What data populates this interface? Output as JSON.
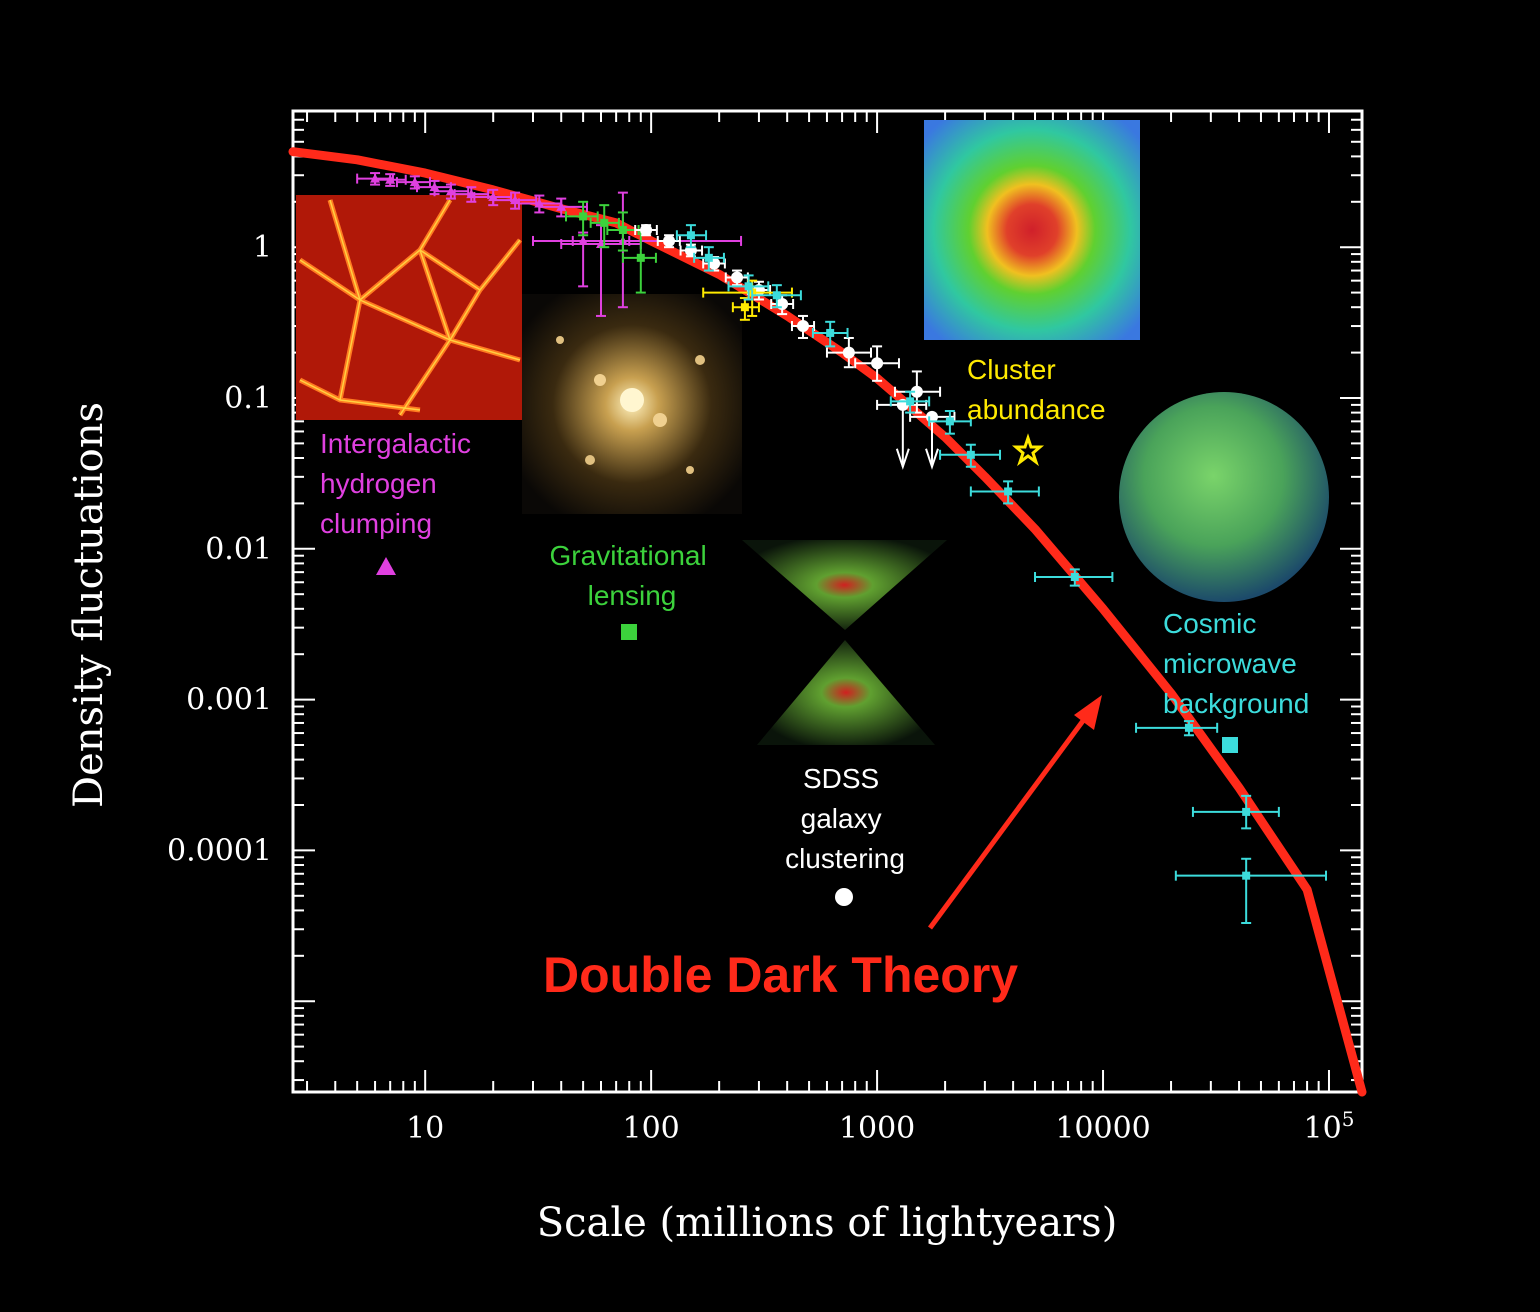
{
  "chart_data": {
    "type": "scatter",
    "xlabel": "Scale (millions of lightyears)",
    "ylabel": "Density fluctuations",
    "xscale": "log",
    "yscale": "log",
    "xlim": [
      2.6,
      140000
    ],
    "ylim": [
      2.5e-06,
      8.0
    ],
    "x_ticks": [
      {
        "value": 10,
        "label": "10"
      },
      {
        "value": 100,
        "label": "100"
      },
      {
        "value": 1000,
        "label": "1000"
      },
      {
        "value": 10000,
        "label": "10000"
      },
      {
        "value": 100000,
        "label": "10",
        "sup": "5"
      }
    ],
    "y_ticks": [
      {
        "value": 1,
        "label": "1"
      },
      {
        "value": 0.1,
        "label": "0.1"
      },
      {
        "value": 0.01,
        "label": "0.01"
      },
      {
        "value": 0.001,
        "label": "0.001"
      },
      {
        "value": 0.0001,
        "label": "0.0001"
      }
    ],
    "theory_curve": {
      "name": "Double Dark Theory",
      "color": "#ff2a1a",
      "x": [
        2.6,
        5,
        10,
        20,
        40,
        70,
        100,
        200,
        400,
        700,
        1000,
        1500,
        2000,
        3000,
        5000,
        10000,
        20000,
        40000,
        80000,
        140000
      ],
      "y": [
        4.3,
        3.8,
        3.1,
        2.4,
        1.8,
        1.45,
        1.1,
        0.66,
        0.35,
        0.2,
        0.135,
        0.08,
        0.055,
        0.03,
        0.0135,
        0.004,
        0.0011,
        0.00026,
        5.5e-05,
        2.5e-06
      ]
    },
    "series": [
      {
        "name": "Intergalactic hydrogen clumping",
        "color": "#e040e0",
        "marker": "triangle",
        "points": [
          {
            "x": 6,
            "y": 2.85,
            "xerr": [
              5,
              7.2
            ],
            "yerr": [
              2.6,
              3.1
            ]
          },
          {
            "x": 7,
            "y": 2.8,
            "xerr": [
              6,
              8.2
            ],
            "yerr": [
              2.55,
              3.05
            ]
          },
          {
            "x": 9,
            "y": 2.7,
            "xerr": [
              7.5,
              10.5
            ],
            "yerr": [
              2.45,
              2.95
            ]
          },
          {
            "x": 11,
            "y": 2.5,
            "xerr": [
              9.2,
              13
            ],
            "yerr": [
              2.25,
              2.75
            ]
          },
          {
            "x": 13,
            "y": 2.35,
            "xerr": [
              11,
              15.5
            ],
            "yerr": [
              2.1,
              2.6
            ]
          },
          {
            "x": 16,
            "y": 2.25,
            "xerr": [
              13.5,
              19
            ],
            "yerr": [
              2.0,
              2.5
            ]
          },
          {
            "x": 20,
            "y": 2.15,
            "xerr": [
              16.5,
              24
            ],
            "yerr": [
              1.9,
              2.4
            ]
          },
          {
            "x": 25,
            "y": 2.05,
            "xerr": [
              20,
              31
            ],
            "yerr": [
              1.8,
              2.3
            ]
          },
          {
            "x": 32,
            "y": 1.95,
            "xerr": [
              26,
              40
            ],
            "yerr": [
              1.7,
              2.2
            ]
          },
          {
            "x": 40,
            "y": 1.85,
            "xerr": [
              32,
              52
            ],
            "yerr": [
              1.6,
              2.1
            ]
          },
          {
            "x": 50,
            "y": 1.1,
            "xerr": [
              30,
              80
            ],
            "yerr": [
              0.55,
              1.25
            ]
          },
          {
            "x": 60,
            "y": 1.05,
            "xerr": [
              40,
              90
            ],
            "yerr": [
              0.35,
              1.4
            ]
          },
          {
            "x": 75,
            "y": 1.1,
            "xerr": [
              45,
              250
            ],
            "yerr": [
              0.4,
              2.3
            ]
          }
        ]
      },
      {
        "name": "Gravitational lensing",
        "color": "#3cd23c",
        "marker": "square",
        "points": [
          {
            "x": 50,
            "y": 1.6,
            "xerr": [
              42,
              58
            ],
            "yerr": [
              1.2,
              2.0
            ]
          },
          {
            "x": 62,
            "y": 1.45,
            "xerr": [
              54,
              72
            ],
            "yerr": [
              1.0,
              1.9
            ]
          },
          {
            "x": 75,
            "y": 1.3,
            "xerr": [
              64,
              88
            ],
            "yerr": [
              0.95,
              1.7
            ]
          },
          {
            "x": 90,
            "y": 0.85,
            "xerr": [
              75,
              105
            ],
            "yerr": [
              0.5,
              1.3
            ]
          }
        ]
      },
      {
        "name": "SDSS galaxy clustering",
        "color": "#ffffff",
        "marker": "circle",
        "points": [
          {
            "x": 95,
            "y": 1.3,
            "xerr": [
              85,
              106
            ],
            "yerr": [
              1.2,
              1.4
            ]
          },
          {
            "x": 120,
            "y": 1.1,
            "xerr": [
              107,
              134
            ],
            "yerr": [
              1.0,
              1.2
            ]
          },
          {
            "x": 150,
            "y": 0.95,
            "xerr": [
              135,
              168
            ],
            "yerr": [
              0.87,
              1.04
            ]
          },
          {
            "x": 190,
            "y": 0.78,
            "xerr": [
              170,
              212
            ],
            "yerr": [
              0.7,
              0.86
            ]
          },
          {
            "x": 240,
            "y": 0.63,
            "xerr": [
              214,
              268
            ],
            "yerr": [
              0.56,
              0.7
            ]
          },
          {
            "x": 300,
            "y": 0.52,
            "xerr": [
              268,
              336
            ],
            "yerr": [
              0.45,
              0.59
            ]
          },
          {
            "x": 380,
            "y": 0.42,
            "xerr": [
              340,
              425
            ],
            "yerr": [
              0.36,
              0.48
            ]
          },
          {
            "x": 470,
            "y": 0.3,
            "xerr": [
              420,
              526
            ],
            "yerr": [
              0.25,
              0.35
            ]
          },
          {
            "x": 750,
            "y": 0.2,
            "xerr": [
              600,
              940
            ],
            "yerr": [
              0.16,
              0.25
            ]
          },
          {
            "x": 1000,
            "y": 0.17,
            "xerr": [
              800,
              1250
            ],
            "yerr": [
              0.13,
              0.22
            ]
          },
          {
            "x": 1500,
            "y": 0.11,
            "xerr": [
              1200,
              1900
            ],
            "yerr": [
              0.08,
              0.15
            ]
          },
          {
            "x": 1300,
            "y": 0.09,
            "xerr": [
              1000,
              1650
            ],
            "yerr": [
              0.035,
              0.12
            ],
            "upper_limit": true
          },
          {
            "x": 1750,
            "y": 0.075,
            "xerr": [
              1400,
              2200
            ],
            "yerr": [
              0.035,
              0.1
            ],
            "upper_limit": true
          }
        ]
      },
      {
        "name": "Cluster abundance",
        "color": "#ffea00",
        "marker": "star",
        "points": [
          {
            "x": 280,
            "y": 0.5,
            "xerr": [
              170,
              420
            ],
            "yerr": [
              0.35,
              0.6
            ]
          },
          {
            "x": 260,
            "y": 0.4,
            "xerr": [
              230,
              300
            ],
            "yerr": [
              0.33,
              0.46
            ]
          }
        ]
      },
      {
        "name": "Cosmic microwave background",
        "color": "#3cdcdc",
        "marker": "square",
        "points": [
          {
            "x": 150,
            "y": 1.2,
            "xerr": [
              130,
              175
            ],
            "yerr": [
              1.0,
              1.4
            ]
          },
          {
            "x": 180,
            "y": 0.85,
            "xerr": [
              155,
              210
            ],
            "yerr": [
              0.7,
              1.0
            ]
          },
          {
            "x": 270,
            "y": 0.55,
            "xerr": [
              220,
              330
            ],
            "yerr": [
              0.45,
              0.65
            ]
          },
          {
            "x": 360,
            "y": 0.48,
            "xerr": [
              280,
              460
            ],
            "yerr": [
              0.4,
              0.56
            ]
          },
          {
            "x": 620,
            "y": 0.27,
            "xerr": [
              520,
              740
            ],
            "yerr": [
              0.22,
              0.32
            ]
          },
          {
            "x": 1400,
            "y": 0.095,
            "xerr": [
              1150,
              1700
            ],
            "yerr": [
              0.08,
              0.11
            ]
          },
          {
            "x": 2100,
            "y": 0.07,
            "xerr": [
              1700,
              2600
            ],
            "yerr": [
              0.058,
              0.082
            ]
          },
          {
            "x": 2600,
            "y": 0.042,
            "xerr": [
              1900,
              3500
            ],
            "yerr": [
              0.035,
              0.049
            ]
          },
          {
            "x": 3800,
            "y": 0.024,
            "xerr": [
              2600,
              5200
            ],
            "yerr": [
              0.02,
              0.028
            ]
          },
          {
            "x": 7500,
            "y": 0.0065,
            "xerr": [
              5000,
              11000
            ],
            "yerr": [
              0.0057,
              0.0073
            ]
          },
          {
            "x": 24000,
            "y": 0.00065,
            "xerr": [
              14000,
              32000
            ],
            "yerr": [
              0.00058,
              0.00072
            ]
          },
          {
            "x": 43000,
            "y": 0.00018,
            "xerr": [
              25000,
              60000
            ],
            "yerr": [
              0.00014,
              0.00023
            ]
          },
          {
            "x": 43000,
            "y": 6.8e-05,
            "xerr": [
              21000,
              97000
            ],
            "yerr": [
              3.3e-05,
              8.8e-05
            ]
          }
        ]
      }
    ]
  },
  "labels": {
    "hydrogen": [
      "Intergalactic",
      "hydrogen",
      "clumping"
    ],
    "lensing": [
      "Gravitational",
      "lensing"
    ],
    "sdss": [
      "SDSS",
      "galaxy",
      "clustering"
    ],
    "cluster": [
      "Cluster",
      "abundance"
    ],
    "cmb": [
      "Cosmic",
      "microwave",
      "background"
    ],
    "theory": "Double Dark Theory"
  }
}
